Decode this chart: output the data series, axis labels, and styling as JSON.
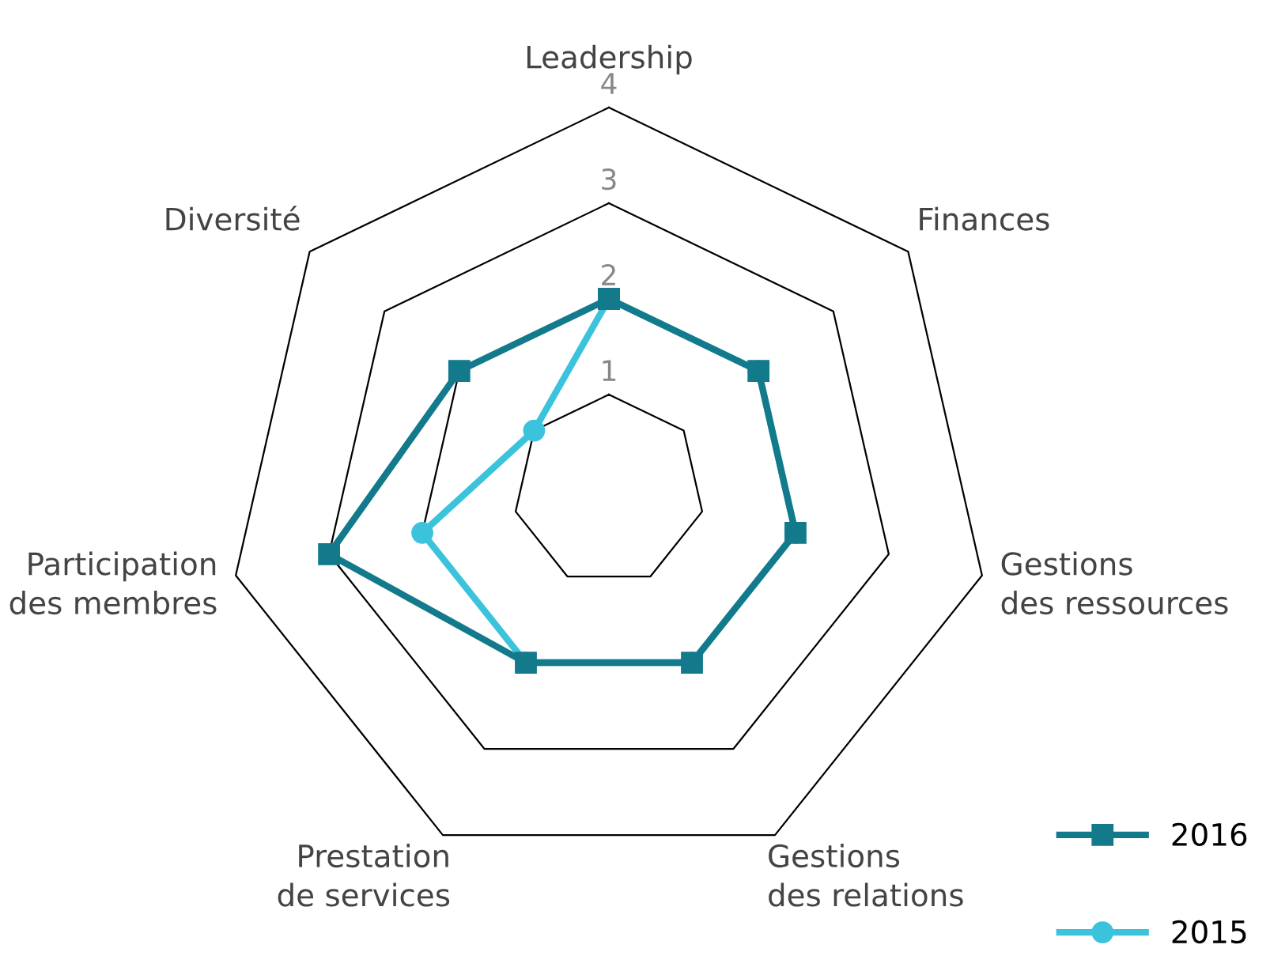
{
  "chart_data": {
    "type": "radar",
    "categories": [
      "Leadership",
      "Finances",
      "Gestions\ndes ressources",
      "Gestions\ndes relations",
      "Prestation\nde services",
      "Participation\ndes membres",
      "Diversité"
    ],
    "series": [
      {
        "name": "2016",
        "color": "#137a8c",
        "marker": "square",
        "values": [
          2,
          2,
          2,
          2,
          2,
          3,
          2
        ]
      },
      {
        "name": "2015",
        "color": "#3bc3dc",
        "marker": "circle",
        "values": [
          2,
          2,
          2,
          2,
          2,
          2,
          1
        ]
      }
    ],
    "ylim": [
      0,
      4
    ],
    "yticks": [
      1,
      2,
      3,
      4
    ],
    "grid": true,
    "legend": "bottom right",
    "line_style": "solid"
  }
}
